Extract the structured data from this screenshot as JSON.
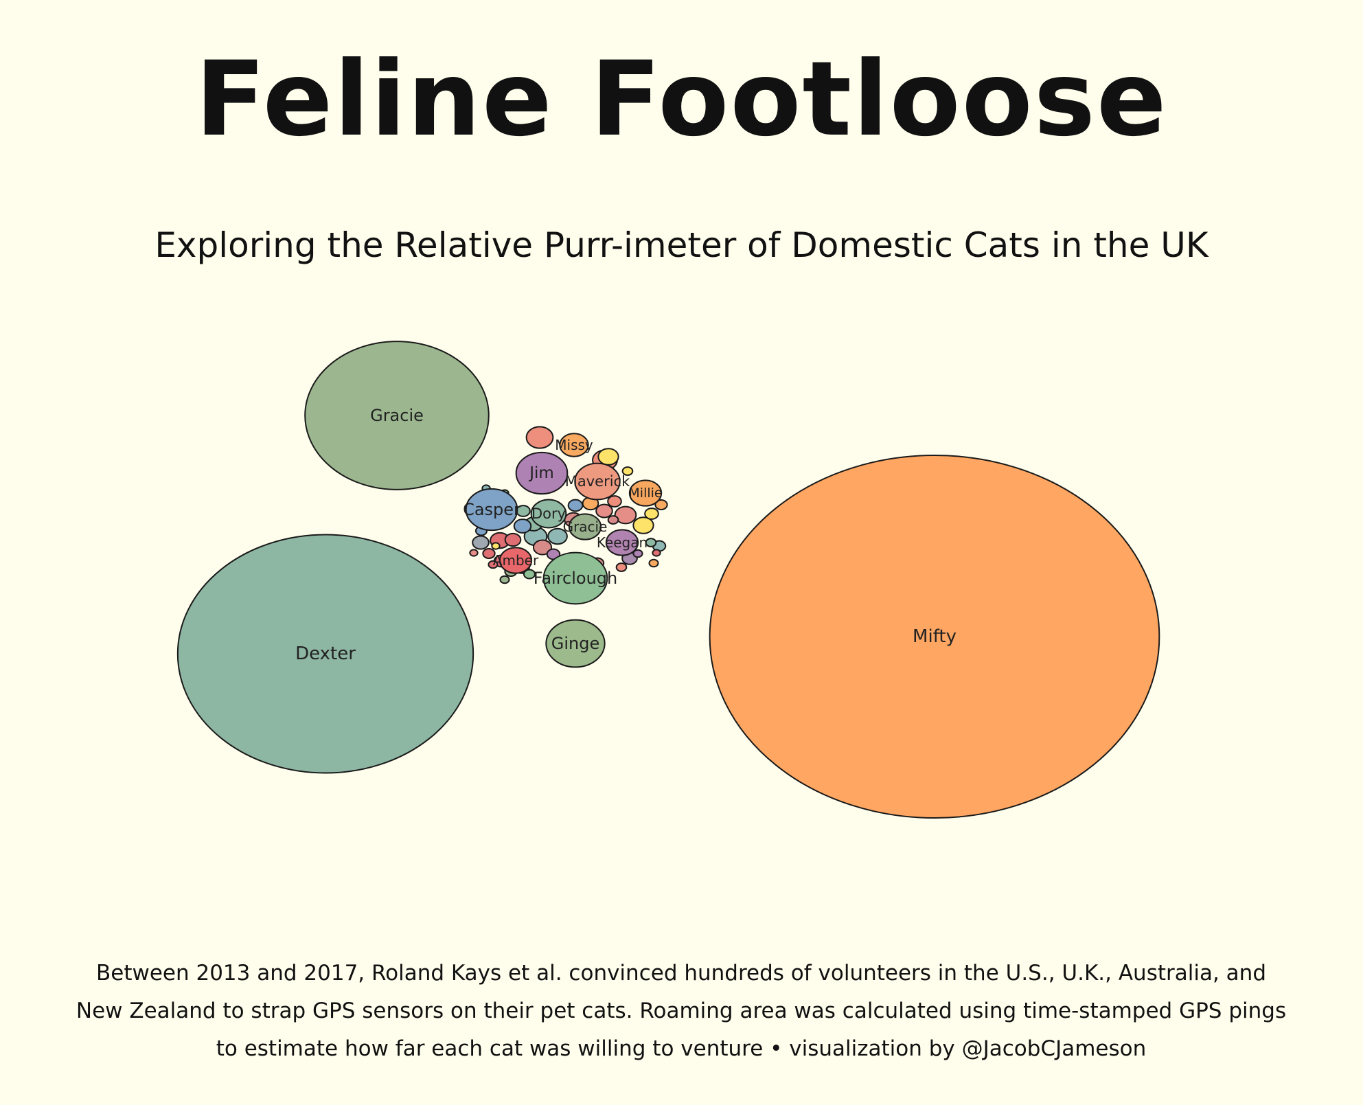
{
  "title": "Feline Footloose",
  "subtitle": "Exploring the Relative Purr-imeter of Domestic Cats in the UK",
  "caption": {
    "line1": "Between 2013 and 2017, Roland Kays et al. convinced hundreds of volunteers in the U.S., U.K., Australia, and",
    "line2": "New Zealand to strap GPS sensors on their pet cats. Roaming area was calculated using time-stamped GPS pings",
    "line3": "to estimate how far each cat was willing to venture • visualization by @JacobCJameson"
  },
  "chart_data": {
    "type": "bubble",
    "title": "Feline Footloose",
    "subtitle": "Exploring the Relative Purr-imeter of Domestic Cats in the UK",
    "labeled": [
      {
        "name": "Mifty",
        "value": 100,
        "color": "#fea662"
      },
      {
        "name": "Dexter",
        "value": 43.2,
        "color": "#8db6a3"
      },
      {
        "name": "Gracie",
        "value": 16.7,
        "color": "#9cb78f"
      },
      {
        "name": "Fairclough",
        "value": 2.0,
        "color": "#8fc095"
      },
      {
        "name": "Ginge",
        "value": 1.7,
        "color": "#9dba8c"
      },
      {
        "name": "Casper",
        "value": 1.3,
        "color": "#7ea3c7"
      },
      {
        "name": "Jim",
        "value": 1.3,
        "color": "#ae82b3"
      },
      {
        "name": "Maverick",
        "value": 1.0,
        "color": "#ee9a80"
      },
      {
        "name": "Dory",
        "value": 0.6,
        "color": "#8fb9a3"
      },
      {
        "name": "Amber",
        "value": 0.5,
        "color": "#e8676a"
      },
      {
        "name": "Keegan",
        "value": 0.5,
        "color": "#b183b0"
      },
      {
        "name": "Gracie",
        "value": 0.5,
        "color": "#98b08c"
      },
      {
        "name": "Millie",
        "value": 0.5,
        "color": "#f8a85e"
      },
      {
        "name": "Missy",
        "value": 0.4,
        "color": "#f9aa61"
      }
    ],
    "small": [
      {
        "value": 0.35,
        "color": "#ee8e7d"
      },
      {
        "value": 0.3,
        "color": "#ee8e7d"
      },
      {
        "value": 0.25,
        "color": "#8fb7b3"
      },
      {
        "value": 0.22,
        "color": "#e58e88"
      },
      {
        "value": 0.2,
        "color": "#fde36a"
      },
      {
        "value": 0.2,
        "color": "#fde36a"
      },
      {
        "value": 0.18,
        "color": "#8fb7b3"
      },
      {
        "value": 0.18,
        "color": "#e06f74"
      },
      {
        "value": 0.16,
        "color": "#d88c89"
      },
      {
        "value": 0.15,
        "color": "#d88c89"
      },
      {
        "value": 0.14,
        "color": "#8fb9a3"
      },
      {
        "value": 0.14,
        "color": "#7ea3c7"
      },
      {
        "value": 0.13,
        "color": "#9fa8b0"
      },
      {
        "value": 0.13,
        "color": "#e58e88"
      },
      {
        "value": 0.12,
        "color": "#e06f74"
      },
      {
        "value": 0.12,
        "color": "#f9aa61"
      },
      {
        "value": 0.11,
        "color": "#a88cb0"
      },
      {
        "value": 0.11,
        "color": "#8fc095"
      },
      {
        "value": 0.1,
        "color": "#e0747a"
      },
      {
        "value": 0.1,
        "color": "#7ea3c7"
      },
      {
        "value": 0.09,
        "color": "#ee8e7d"
      },
      {
        "value": 0.09,
        "color": "#8fb9a3"
      },
      {
        "value": 0.09,
        "color": "#fde36a"
      },
      {
        "value": 0.08,
        "color": "#d88c89"
      },
      {
        "value": 0.08,
        "color": "#ae82b3"
      },
      {
        "value": 0.08,
        "color": "#8fb7b3"
      },
      {
        "value": 0.07,
        "color": "#e06f74"
      },
      {
        "value": 0.07,
        "color": "#9cb78f"
      },
      {
        "value": 0.07,
        "color": "#f9aa61"
      },
      {
        "value": 0.06,
        "color": "#e58e88"
      },
      {
        "value": 0.06,
        "color": "#8fc095"
      },
      {
        "value": 0.06,
        "color": "#7ea3c7"
      },
      {
        "value": 0.05,
        "color": "#d88c89"
      },
      {
        "value": 0.05,
        "color": "#fde36a"
      },
      {
        "value": 0.05,
        "color": "#ee8e7d"
      },
      {
        "value": 0.05,
        "color": "#8fb9a3"
      },
      {
        "value": 0.04,
        "color": "#e06f74"
      },
      {
        "value": 0.04,
        "color": "#9cb78f"
      },
      {
        "value": 0.04,
        "color": "#ae82b3"
      },
      {
        "value": 0.04,
        "color": "#f9aa61"
      },
      {
        "value": 0.03,
        "color": "#e58e88"
      },
      {
        "value": 0.03,
        "color": "#8fb7b3"
      },
      {
        "value": 0.03,
        "color": "#d88c89"
      },
      {
        "value": 0.03,
        "color": "#8fc095"
      },
      {
        "value": 0.03,
        "color": "#e06f74"
      },
      {
        "value": 0.03,
        "color": "#fde36a"
      }
    ],
    "legend": "none",
    "grid": false
  }
}
